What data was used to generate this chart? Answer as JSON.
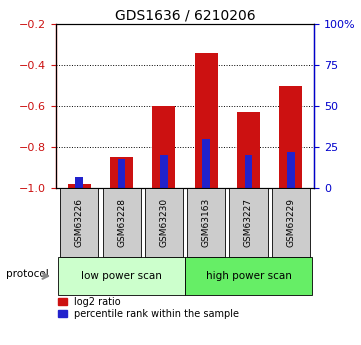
{
  "title": "GDS1636 / 6210206",
  "categories": [
    "GSM63226",
    "GSM63228",
    "GSM63230",
    "GSM63163",
    "GSM63227",
    "GSM63229"
  ],
  "log2_ratio": [
    -0.98,
    -0.85,
    -0.6,
    -0.34,
    -0.63,
    -0.5
  ],
  "percentile_rank": [
    7,
    18,
    20,
    30,
    20,
    22
  ],
  "ylim_left": [
    -1.0,
    -0.2
  ],
  "ylim_right": [
    0,
    100
  ],
  "yticks_left": [
    -1.0,
    -0.8,
    -0.6,
    -0.4,
    -0.2
  ],
  "yticks_right": [
    0,
    25,
    50,
    75,
    100
  ],
  "ytick_labels_right": [
    "0",
    "25",
    "50",
    "75",
    "100%"
  ],
  "bar_color_red": "#cc1111",
  "bar_color_blue": "#2222cc",
  "group_labels": [
    "low power scan",
    "high power scan"
  ],
  "group_colors_light": "#ccffcc",
  "group_colors_dark": "#66ee66",
  "protocol_label": "protocol",
  "legend_items": [
    "log2 ratio",
    "percentile rank within the sample"
  ],
  "tick_label_color_left": "#cc1111",
  "tick_label_color_right": "#0000cc",
  "label_bg_color": "#cccccc"
}
